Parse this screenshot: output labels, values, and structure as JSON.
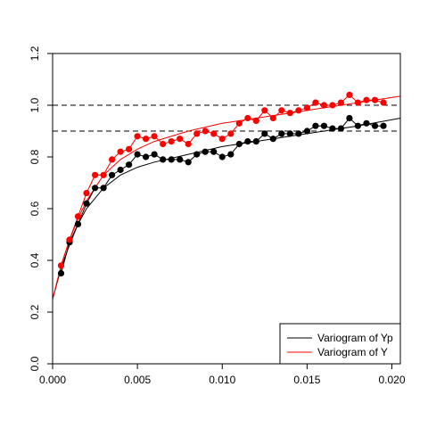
{
  "chart_data": {
    "type": "scatter",
    "title": "",
    "xlabel": "",
    "ylabel": "",
    "xlim": [
      0,
      0.0205
    ],
    "ylim": [
      0,
      1.2
    ],
    "xticks": [
      0.0,
      0.005,
      0.01,
      0.015,
      0.02
    ],
    "xtick_labels": [
      "0.000",
      "0.005",
      "0.010",
      "0.015",
      "0.020"
    ],
    "yticks": [
      0.0,
      0.2,
      0.4,
      0.6,
      0.8,
      1.0,
      1.2
    ],
    "ytick_labels": [
      "0.0",
      "0.2",
      "0.4",
      "0.6",
      "0.8",
      "1.0",
      "1.2"
    ],
    "grid": false,
    "legend_position": "bottom-right",
    "reference_lines": [
      {
        "y": 1.0,
        "style": "dashed",
        "color": "#000000"
      },
      {
        "y": 0.9,
        "style": "dashed",
        "color": "#000000"
      }
    ],
    "series": [
      {
        "name": "Variogram of Yp",
        "color": "#000000",
        "x": [
          0.0005,
          0.001,
          0.0015,
          0.002,
          0.0025,
          0.003,
          0.0035,
          0.004,
          0.0045,
          0.005,
          0.0055,
          0.006,
          0.0065,
          0.007,
          0.0075,
          0.008,
          0.0085,
          0.009,
          0.0095,
          0.01,
          0.0105,
          0.011,
          0.0115,
          0.012,
          0.0125,
          0.013,
          0.0135,
          0.014,
          0.0145,
          0.015,
          0.0155,
          0.016,
          0.0165,
          0.017,
          0.0175,
          0.018,
          0.0185,
          0.019,
          0.0195
        ],
        "y": [
          0.35,
          0.47,
          0.54,
          0.62,
          0.68,
          0.68,
          0.73,
          0.75,
          0.77,
          0.81,
          0.8,
          0.81,
          0.79,
          0.79,
          0.79,
          0.78,
          0.81,
          0.82,
          0.82,
          0.8,
          0.81,
          0.85,
          0.86,
          0.86,
          0.89,
          0.87,
          0.89,
          0.89,
          0.89,
          0.9,
          0.92,
          0.92,
          0.91,
          0.91,
          0.95,
          0.92,
          0.93,
          0.92,
          0.92
        ],
        "fit": {
          "x": [
            0.0,
            0.0005,
            0.001,
            0.0015,
            0.002,
            0.003,
            0.004,
            0.005,
            0.006,
            0.008,
            0.01,
            0.012,
            0.014,
            0.016,
            0.018,
            0.0205
          ],
          "y": [
            0.25,
            0.37,
            0.46,
            0.54,
            0.6,
            0.68,
            0.73,
            0.76,
            0.78,
            0.81,
            0.84,
            0.86,
            0.88,
            0.9,
            0.92,
            0.95
          ]
        }
      },
      {
        "name": "Variogram of Y",
        "color": "#ff0000",
        "x": [
          0.0005,
          0.001,
          0.0015,
          0.002,
          0.0025,
          0.003,
          0.0035,
          0.004,
          0.0045,
          0.005,
          0.0055,
          0.006,
          0.0065,
          0.007,
          0.0075,
          0.008,
          0.0085,
          0.009,
          0.0095,
          0.01,
          0.0105,
          0.011,
          0.0115,
          0.012,
          0.0125,
          0.013,
          0.0135,
          0.014,
          0.0145,
          0.015,
          0.0155,
          0.016,
          0.0165,
          0.017,
          0.0175,
          0.018,
          0.0185,
          0.019,
          0.0195
        ],
        "y": [
          0.38,
          0.48,
          0.57,
          0.66,
          0.73,
          0.73,
          0.79,
          0.82,
          0.83,
          0.88,
          0.87,
          0.88,
          0.85,
          0.86,
          0.87,
          0.85,
          0.89,
          0.9,
          0.89,
          0.87,
          0.89,
          0.93,
          0.95,
          0.94,
          0.98,
          0.95,
          0.98,
          0.97,
          0.98,
          0.99,
          1.01,
          1.0,
          1.0,
          1.01,
          1.04,
          1.01,
          1.02,
          1.02,
          1.01
        ],
        "fit": {
          "x": [
            0.0,
            0.0005,
            0.001,
            0.0015,
            0.002,
            0.003,
            0.004,
            0.005,
            0.006,
            0.008,
            0.01,
            0.012,
            0.014,
            0.016,
            0.018,
            0.0205
          ],
          "y": [
            0.25,
            0.38,
            0.48,
            0.56,
            0.63,
            0.73,
            0.79,
            0.83,
            0.86,
            0.9,
            0.93,
            0.95,
            0.97,
            0.99,
            1.01,
            1.035
          ]
        }
      }
    ]
  }
}
